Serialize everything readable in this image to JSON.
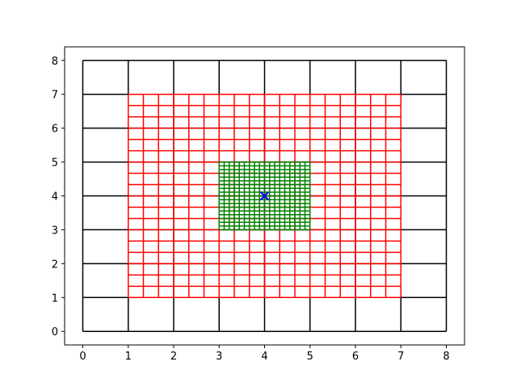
{
  "chart_data": {
    "type": "grid",
    "xlim": [
      -0.4,
      8.4
    ],
    "ylim": [
      -0.4,
      8.4
    ],
    "xticks": [
      0,
      1,
      2,
      3,
      4,
      5,
      6,
      7,
      8
    ],
    "yticks": [
      0,
      1,
      2,
      3,
      4,
      5,
      6,
      7,
      8
    ],
    "grids": [
      {
        "color": "#000000",
        "x": [
          0,
          8
        ],
        "y": [
          0,
          8
        ],
        "nx": 8,
        "ny": 8
      },
      {
        "color": "#ff0000",
        "x": [
          1,
          7
        ],
        "y": [
          1,
          7
        ],
        "nx": 18,
        "ny": 18
      },
      {
        "color": "#008000",
        "x": [
          3,
          5
        ],
        "y": [
          3,
          5
        ],
        "nx": 18,
        "ny": 18
      }
    ],
    "points": {
      "x": [
        4
      ],
      "y": [
        4
      ],
      "color": "#0000ff",
      "marker": "x"
    }
  }
}
